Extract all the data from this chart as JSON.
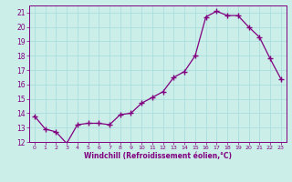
{
  "x": [
    0,
    1,
    2,
    3,
    4,
    5,
    6,
    7,
    8,
    9,
    10,
    11,
    12,
    13,
    14,
    15,
    16,
    17,
    18,
    19,
    20,
    21,
    22,
    23
  ],
  "y": [
    13.8,
    12.9,
    12.7,
    11.9,
    13.2,
    13.3,
    13.3,
    13.2,
    13.9,
    14.0,
    14.7,
    15.1,
    15.5,
    16.5,
    16.9,
    18.0,
    20.7,
    21.1,
    20.8,
    20.8,
    20.0,
    19.3,
    17.8,
    16.4
  ],
  "line_color": "#800080",
  "marker": "+",
  "marker_size": 4,
  "bg_color": "#cceee8",
  "grid_color": "#aadddd",
  "xlabel": "Windchill (Refroidissement éolien,°C)",
  "ylim": [
    12,
    21.5
  ],
  "xlim": [
    -0.5,
    23.5
  ],
  "yticks": [
    12,
    13,
    14,
    15,
    16,
    17,
    18,
    19,
    20,
    21
  ],
  "xtick_labels": [
    "0",
    "1",
    "2",
    "3",
    "4",
    "5",
    "6",
    "7",
    "8",
    "9",
    "10",
    "11",
    "12",
    "13",
    "14",
    "15",
    "16",
    "17",
    "18",
    "19",
    "20",
    "21",
    "22",
    "23"
  ],
  "tick_color": "#800080",
  "label_color": "#800080",
  "axis_color": "#800080"
}
